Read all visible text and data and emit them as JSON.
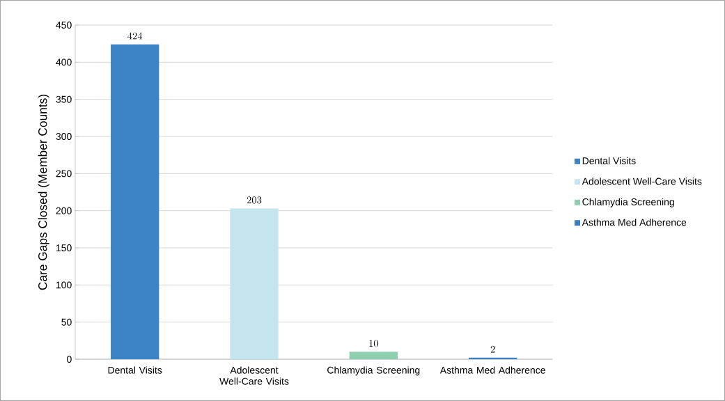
{
  "chart_data": {
    "type": "bar",
    "ylabel": "Care Gaps Closed (Member Counts)",
    "categories": [
      "Dental Visits",
      "Adolescent Well-Care Visits",
      "Chlamydia Screening",
      "Asthma Med Adherence"
    ],
    "series": [
      {
        "name": "Dental Visits",
        "color": "#3d84c6",
        "values": [
          424,
          null,
          null,
          null
        ]
      },
      {
        "name": "Adolescent Well-Care Visits",
        "color": "#c4e4ee",
        "values": [
          null,
          203,
          null,
          null
        ]
      },
      {
        "name": "Chlamydia Screening",
        "color": "#8ecfb2",
        "values": [
          null,
          null,
          10,
          null
        ]
      },
      {
        "name": "Asthma Med Adherence",
        "color": "#3b7fc4",
        "values": [
          null,
          null,
          null,
          2
        ]
      }
    ],
    "ylim": [
      0,
      450
    ],
    "yticks": [
      0,
      50,
      100,
      150,
      200,
      250,
      300,
      350,
      400,
      450
    ],
    "grid": "y",
    "legend": "right",
    "data_labels": true
  }
}
